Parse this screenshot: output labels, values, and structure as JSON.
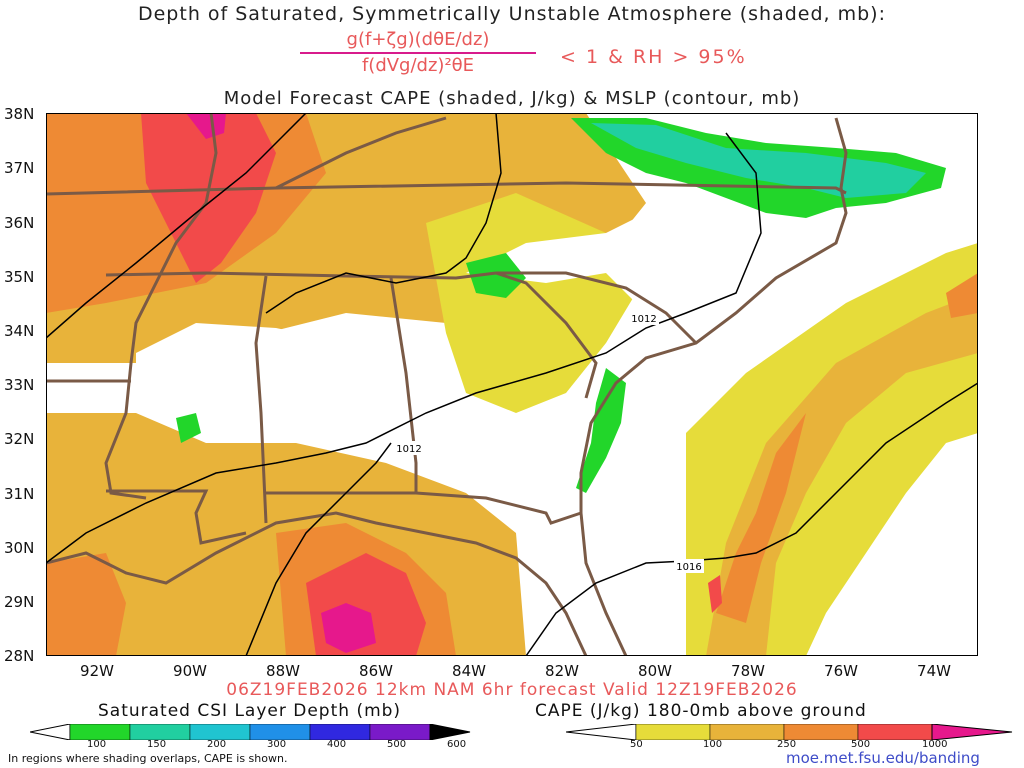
{
  "header": {
    "title": "Depth of Saturated, Symmetrically Unstable Atmosphere (shaded, mb):",
    "numerator": "g(f+ζg)(dθE/dz)",
    "denominator": "f(dVg/dz)²θE",
    "condition": "< 1 & RH > 95%",
    "subtitle": "Model Forecast CAPE (shaded, J/kg) & MSLP (contour, mb)"
  },
  "map": {
    "lat_labels": [
      "38N",
      "37N",
      "36N",
      "35N",
      "34N",
      "33N",
      "32N",
      "31N",
      "30N",
      "29N",
      "28N"
    ],
    "lon_labels": [
      "92W",
      "90W",
      "88W",
      "86W",
      "84W",
      "82W",
      "80W",
      "78W",
      "76W",
      "74W"
    ],
    "contour_labels": [
      "1012",
      "1012",
      "1016"
    ],
    "colors": {
      "border": "#7a5a46",
      "contour": "#000000",
      "csi_low": "#22d62a",
      "csi_mid": "#21cfa0",
      "cape_50": "#e6dc3a",
      "cape_100": "#e8b33a",
      "cape_250": "#ee8a34",
      "cape_500": "#f24a4a",
      "cape_1000": "#e6188c"
    }
  },
  "footer": {
    "valid": "06Z19FEB2026 12km NAM 6hr forecast Valid 12Z19FEB2026",
    "csi_title": "Saturated CSI Layer Depth (mb)",
    "csi_ticks": [
      "100",
      "150",
      "200",
      "300",
      "400",
      "500",
      "600"
    ],
    "cape_title": "CAPE (J/kg) 180-0mb above ground",
    "cape_ticks": [
      "50",
      "100",
      "250",
      "500",
      "1000"
    ],
    "note": "In regions where shading overlaps, CAPE is shown.",
    "url": "moe.met.fsu.edu/banding"
  }
}
